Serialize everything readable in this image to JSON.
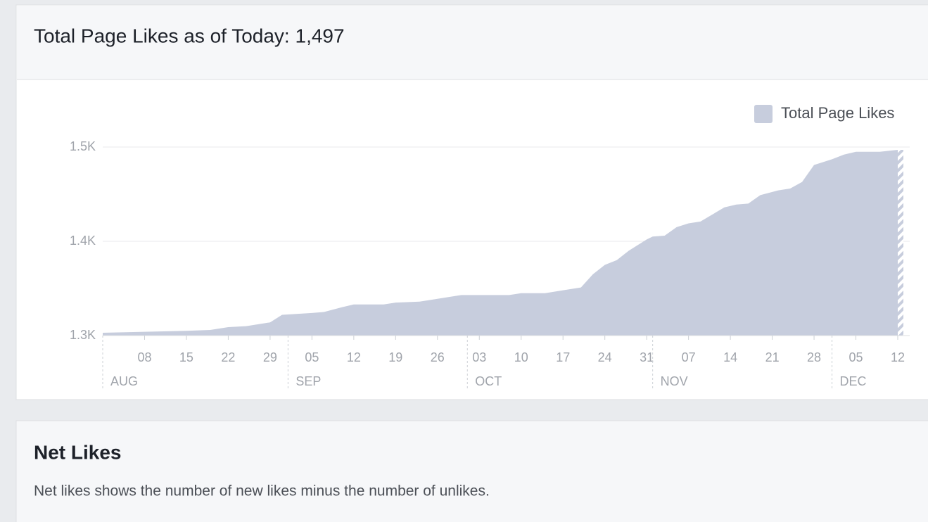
{
  "header": {
    "title": "Total Page Likes as of Today: 1,497"
  },
  "chart_data": {
    "type": "area",
    "x": [
      "08-01",
      "08-08",
      "08-15",
      "08-19",
      "08-22",
      "08-25",
      "08-29",
      "08-31",
      "09-05",
      "09-07",
      "09-10",
      "09-12",
      "09-17",
      "09-19",
      "09-23",
      "09-26",
      "09-30",
      "10-03",
      "10-08",
      "10-10",
      "10-14",
      "10-17",
      "10-20",
      "10-22",
      "10-24",
      "10-26",
      "10-28",
      "10-31",
      "11-01",
      "11-03",
      "11-05",
      "11-07",
      "11-09",
      "11-13",
      "11-15",
      "11-17",
      "11-19",
      "11-22",
      "11-24",
      "11-26",
      "11-28",
      "12-01",
      "12-03",
      "12-05",
      "12-09",
      "12-12"
    ],
    "series": [
      {
        "name": "Total Page Likes",
        "color": "#c7cddd",
        "values": [
          1303,
          1304,
          1305,
          1306,
          1309,
          1310,
          1314,
          1322,
          1324,
          1325,
          1330,
          1333,
          1333,
          1335,
          1336,
          1339,
          1343,
          1343,
          1343,
          1345,
          1345,
          1348,
          1351,
          1365,
          1375,
          1380,
          1390,
          1402,
          1405,
          1406,
          1415,
          1419,
          1421,
          1436,
          1439,
          1440,
          1449,
          1454,
          1456,
          1463,
          1481,
          1487,
          1492,
          1495,
          1495,
          1497
        ]
      }
    ],
    "xlim": [
      "08-01",
      "12-14"
    ],
    "xticks": [
      {
        "value": "08-08",
        "label": "08"
      },
      {
        "value": "08-15",
        "label": "15"
      },
      {
        "value": "08-22",
        "label": "22"
      },
      {
        "value": "08-29",
        "label": "29"
      },
      {
        "value": "09-05",
        "label": "05"
      },
      {
        "value": "09-12",
        "label": "12"
      },
      {
        "value": "09-19",
        "label": "19"
      },
      {
        "value": "09-26",
        "label": "26"
      },
      {
        "value": "10-03",
        "label": "03"
      },
      {
        "value": "10-10",
        "label": "10"
      },
      {
        "value": "10-17",
        "label": "17"
      },
      {
        "value": "10-24",
        "label": "24"
      },
      {
        "value": "10-31",
        "label": "31"
      },
      {
        "value": "11-07",
        "label": "07"
      },
      {
        "value": "11-14",
        "label": "14"
      },
      {
        "value": "11-21",
        "label": "21"
      },
      {
        "value": "11-28",
        "label": "28"
      },
      {
        "value": "12-05",
        "label": "05"
      },
      {
        "value": "12-12",
        "label": "12"
      }
    ],
    "months": [
      {
        "value": "08-01",
        "label": "AUG"
      },
      {
        "value": "09-01",
        "label": "SEP"
      },
      {
        "value": "10-01",
        "label": "OCT"
      },
      {
        "value": "11-01",
        "label": "NOV"
      },
      {
        "value": "12-01",
        "label": "DEC"
      }
    ],
    "ylim": [
      1300,
      1500
    ],
    "yticks": [
      {
        "value": 1300,
        "label": "1.3K"
      },
      {
        "value": 1400,
        "label": "1.4K"
      },
      {
        "value": 1500,
        "label": "1.5K"
      }
    ],
    "grid": true,
    "legend": "top-right"
  },
  "section": {
    "title": "Net Likes",
    "description": "Net likes shows the number of new likes minus the number of unlikes."
  }
}
